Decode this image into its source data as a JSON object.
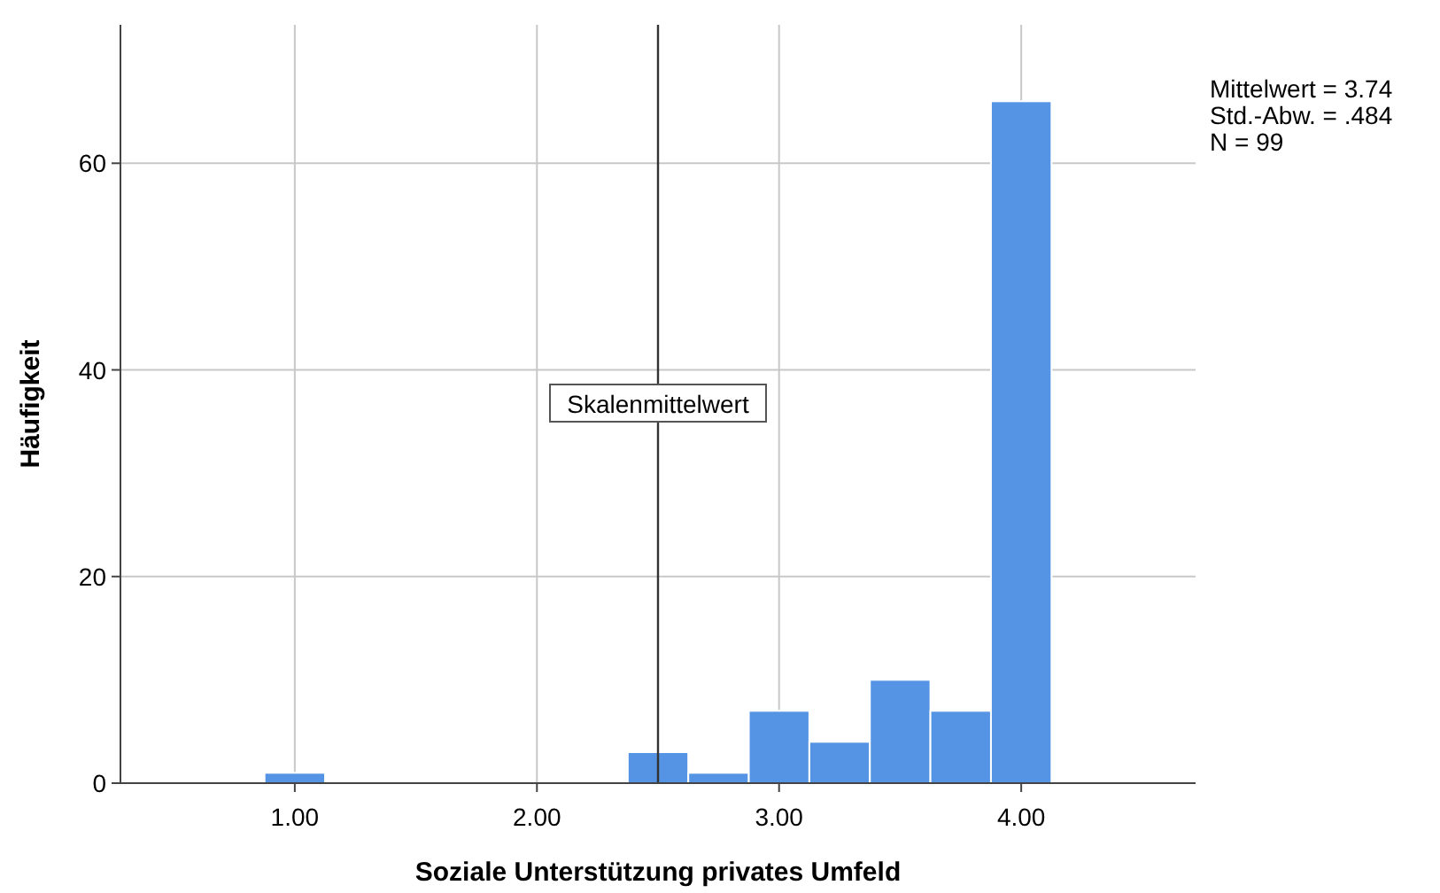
{
  "chart_data": {
    "type": "histogram",
    "xlabel": "Soziale Unterstützung privates Umfeld",
    "ylabel": "Häufigkeit",
    "bins": [
      0.875,
      1.125,
      1.375,
      1.625,
      1.875,
      2.125,
      2.375,
      2.625,
      2.875,
      3.125,
      3.375,
      3.625,
      3.875,
      4.125
    ],
    "values": [
      1,
      0,
      0,
      0,
      0,
      0,
      3,
      1,
      7,
      4,
      10,
      7,
      66
    ],
    "color": "#5594e4",
    "xlim": [
      0.28,
      4.72
    ],
    "ylim": [
      0,
      73.4
    ],
    "xticks": [
      {
        "value": 1,
        "label": "1.00"
      },
      {
        "value": 2,
        "label": "2.00"
      },
      {
        "value": 3,
        "label": "3.00"
      },
      {
        "value": 4,
        "label": "4.00"
      }
    ],
    "yticks": [
      0,
      20,
      40,
      60
    ],
    "grid": true,
    "ref_lines": [
      {
        "axis": "x",
        "value": 2.5,
        "label": "Skalenmittelwert",
        "color": "#333333"
      }
    ],
    "annotations": [
      "Mittelwert = 3.74",
      "Std.-Abw. = .484",
      "N = 99"
    ]
  }
}
